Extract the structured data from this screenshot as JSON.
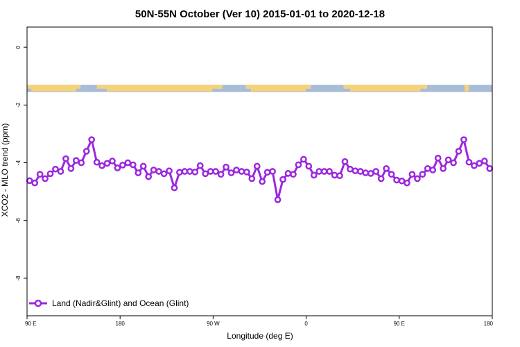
{
  "chart_data": {
    "type": "line",
    "title": "50N-55N October (Ver 10)   2015-01-01 to 2020-12-18",
    "xlabel": "Longitude (deg E)",
    "ylabel": "XCO2 - MLO trend (ppm)",
    "xlim": [
      90,
      450
    ],
    "ylim": [
      -9.3,
      0.7
    ],
    "x_ticks": [
      {
        "value": 90,
        "label": "90 E"
      },
      {
        "value": 162,
        "label": "180"
      },
      {
        "value": 234,
        "label": "90 W"
      },
      {
        "value": 306,
        "label": "0"
      },
      {
        "value": 378,
        "label": "90 E"
      },
      {
        "value": 450,
        "label": "180"
      }
    ],
    "y_ticks": [
      0,
      -2,
      -4,
      -6,
      -8
    ],
    "grid": false,
    "legend_position": "bottom-left",
    "land_ocean_strip": {
      "y_range": [
        -1.3,
        -1.55
      ],
      "ocean_color": "#a6bcd9",
      "land_color": "#f4d27a"
    },
    "series": [
      {
        "name": "Land (Nadir&Glint) and Ocean (Glint)",
        "color": "#9b27e0",
        "x": [
          92,
          96,
          100,
          104,
          108,
          112,
          116,
          120,
          124,
          128,
          132,
          136,
          140,
          144,
          148,
          152,
          156,
          160,
          164,
          168,
          172,
          176,
          180,
          184,
          188,
          192,
          196,
          200,
          204,
          208,
          212,
          216,
          220,
          224,
          228,
          232,
          236,
          240,
          244,
          248,
          252,
          256,
          260,
          264,
          268,
          272,
          276,
          280,
          284,
          288,
          292,
          296,
          300,
          304,
          308,
          312,
          316,
          320,
          324,
          328,
          332,
          336,
          340,
          344,
          348,
          352,
          356,
          360,
          364,
          368,
          372,
          376,
          380,
          384,
          388,
          392,
          396,
          400,
          404,
          408,
          412,
          416,
          420,
          424,
          428,
          432,
          436,
          440,
          444,
          448
        ],
        "y": [
          -4.62,
          -4.7,
          -4.4,
          -4.55,
          -4.38,
          -4.22,
          -4.3,
          -3.86,
          -4.2,
          -3.92,
          -4.0,
          -3.6,
          -3.2,
          -3.98,
          -4.1,
          -4.02,
          -3.94,
          -4.18,
          -4.08,
          -4.0,
          -4.07,
          -4.35,
          -4.12,
          -4.48,
          -4.25,
          -4.3,
          -4.38,
          -4.28,
          -4.87,
          -4.33,
          -4.3,
          -4.3,
          -4.32,
          -4.1,
          -4.38,
          -4.3,
          -4.3,
          -4.4,
          -4.15,
          -4.35,
          -4.25,
          -4.3,
          -4.32,
          -4.55,
          -4.12,
          -4.65,
          -4.33,
          -4.3,
          -5.28,
          -4.58,
          -4.37,
          -4.4,
          -4.07,
          -3.88,
          -4.12,
          -4.43,
          -4.3,
          -4.3,
          -4.3,
          -4.43,
          -4.45,
          -3.96,
          -4.22,
          -4.28,
          -4.3,
          -4.35,
          -4.37,
          -4.3,
          -4.55,
          -4.2,
          -4.4,
          -4.6,
          -4.63,
          -4.7,
          -4.4,
          -4.55,
          -4.4,
          -4.2,
          -4.25,
          -3.84,
          -4.2,
          -3.9,
          -4.0,
          -3.6,
          -3.2,
          -3.98,
          -4.1,
          -4.02,
          -3.94,
          -4.2
        ]
      }
    ]
  }
}
